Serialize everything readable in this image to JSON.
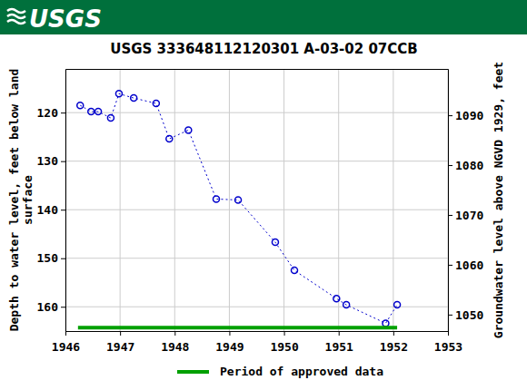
{
  "banner": {
    "logo": "USGS"
  },
  "chart_data": {
    "type": "line",
    "title": "USGS 333648112120301 A-03-02 07CCB",
    "ylabel": [
      "Depth to water level, feet below land",
      "surface"
    ],
    "y2label": "Groundwater level above NGVD 1929, feet",
    "xlim": [
      1946,
      1953
    ],
    "xticks": [
      1946,
      1947,
      1948,
      1949,
      1950,
      1951,
      1952,
      1953
    ],
    "ylim": [
      165,
      111
    ],
    "yticks": [
      120,
      130,
      140,
      150,
      160
    ],
    "y2lim": [
      1046.7,
      1099.3
    ],
    "y2ticks": [
      1050,
      1060,
      1070,
      1080,
      1090
    ],
    "grid": true,
    "legend": "bottom",
    "series": [
      {
        "type": "line",
        "color": "#0000cc",
        "marker": "circle",
        "line_style": "dotted",
        "x": [
          1946.27,
          1946.47,
          1946.6,
          1946.83,
          1946.98,
          1947.25,
          1947.66,
          1947.9,
          1948.25,
          1948.76,
          1949.16,
          1949.84,
          1950.19,
          1950.96,
          1951.14,
          1951.86,
          1952.07
        ],
        "values": [
          118.5,
          119.8,
          119.8,
          121.1,
          116.1,
          117.0,
          118.1,
          125.4,
          123.6,
          137.8,
          138.0,
          146.7,
          152.5,
          158.3,
          159.6,
          163.4,
          159.6
        ]
      },
      {
        "type": "line",
        "name": "Period of approved data",
        "color": "#00a000",
        "line_style": "solid",
        "x": [
          1946.23,
          1952.07
        ],
        "values": [
          164.3,
          164.3
        ]
      }
    ]
  }
}
